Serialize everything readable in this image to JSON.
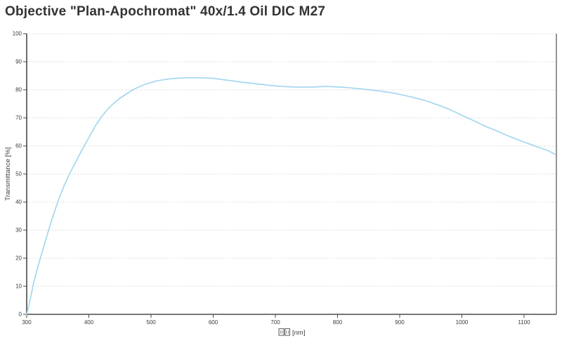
{
  "title": "Objective \"Plan-Apochromat\" 40x/1.4 Oil DIC M27",
  "colors": {
    "background": "#ffffff",
    "title_text": "#333333",
    "axis": "#4a4a4a",
    "right_border": "#8a8a8a",
    "gridline": "#c9c9c9",
    "curve": "#a4d7f0"
  },
  "chart_data": {
    "type": "line",
    "title": "Objective \"Plan-Apochromat\" 40x/1.4 Oil DIC M27",
    "ylabel": "Transmittance [%]",
    "xlabel_unit": "[nm]",
    "xlabel_prefix": "□□",
    "xlabel_missing_glyph_boxes": 2,
    "xlim": [
      300,
      1152
    ],
    "ylim": [
      0,
      100
    ],
    "xticks": [
      300,
      400,
      500,
      600,
      700,
      800,
      900,
      1000,
      1100
    ],
    "yticks": [
      0,
      10,
      20,
      30,
      40,
      50,
      60,
      70,
      80,
      90,
      100
    ],
    "grid": "horizontal-dotted",
    "legend": "none",
    "line_color": "#a4d7f0",
    "series": [
      {
        "name": "Transmittance",
        "points": [
          [
            300,
            0
          ],
          [
            305,
            4.5
          ],
          [
            310,
            10
          ],
          [
            315,
            14.5
          ],
          [
            320,
            18.5
          ],
          [
            330,
            26
          ],
          [
            340,
            33.5
          ],
          [
            350,
            40
          ],
          [
            360,
            45.8
          ],
          [
            370,
            50.5
          ],
          [
            380,
            54.8
          ],
          [
            390,
            59
          ],
          [
            400,
            63
          ],
          [
            410,
            67
          ],
          [
            420,
            70.3
          ],
          [
            430,
            73
          ],
          [
            440,
            75.2
          ],
          [
            450,
            77
          ],
          [
            460,
            78.5
          ],
          [
            470,
            79.9
          ],
          [
            480,
            81
          ],
          [
            490,
            81.9
          ],
          [
            500,
            82.6
          ],
          [
            510,
            83.2
          ],
          [
            520,
            83.6
          ],
          [
            530,
            83.9
          ],
          [
            540,
            84.1
          ],
          [
            550,
            84.2
          ],
          [
            560,
            84.3
          ],
          [
            570,
            84.3
          ],
          [
            580,
            84.3
          ],
          [
            590,
            84.2
          ],
          [
            600,
            84.1
          ],
          [
            610,
            83.8
          ],
          [
            620,
            83.5
          ],
          [
            630,
            83.2
          ],
          [
            640,
            82.9
          ],
          [
            650,
            82.6
          ],
          [
            660,
            82.4
          ],
          [
            670,
            82.1
          ],
          [
            680,
            81.9
          ],
          [
            690,
            81.6
          ],
          [
            700,
            81.4
          ],
          [
            710,
            81.2
          ],
          [
            720,
            81.1
          ],
          [
            730,
            81.0
          ],
          [
            740,
            80.95
          ],
          [
            750,
            80.95
          ],
          [
            760,
            81.0
          ],
          [
            770,
            81.1
          ],
          [
            780,
            81.2
          ],
          [
            790,
            81.15
          ],
          [
            800,
            81.0
          ],
          [
            810,
            80.9
          ],
          [
            820,
            80.7
          ],
          [
            830,
            80.5
          ],
          [
            840,
            80.3
          ],
          [
            850,
            80.0
          ],
          [
            860,
            79.8
          ],
          [
            870,
            79.5
          ],
          [
            880,
            79.2
          ],
          [
            890,
            78.8
          ],
          [
            900,
            78.4
          ],
          [
            910,
            77.9
          ],
          [
            920,
            77.4
          ],
          [
            930,
            76.8
          ],
          [
            940,
            76.2
          ],
          [
            950,
            75.5
          ],
          [
            960,
            74.7
          ],
          [
            970,
            73.9
          ],
          [
            980,
            73.0
          ],
          [
            990,
            72.0
          ],
          [
            1000,
            70.9
          ],
          [
            1010,
            69.9
          ],
          [
            1020,
            68.9
          ],
          [
            1030,
            67.8
          ],
          [
            1040,
            66.8
          ],
          [
            1050,
            65.9
          ],
          [
            1060,
            65.0
          ],
          [
            1070,
            64.0
          ],
          [
            1080,
            63.1
          ],
          [
            1090,
            62.2
          ],
          [
            1100,
            61.4
          ],
          [
            1110,
            60.6
          ],
          [
            1120,
            59.8
          ],
          [
            1130,
            59.0
          ],
          [
            1140,
            58.2
          ],
          [
            1150,
            57.0
          ]
        ]
      }
    ]
  }
}
